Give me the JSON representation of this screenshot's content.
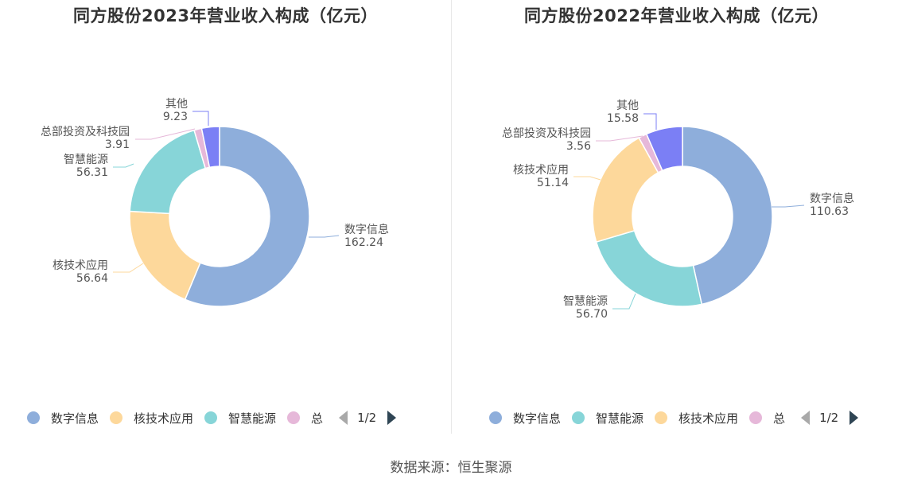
{
  "source_label": "数据来源：恒生聚源",
  "chart_data": [
    {
      "type": "pie",
      "title": "同方股份2023年营业收入构成（亿元）",
      "slices": [
        {
          "name": "数字信息",
          "value": 162.24,
          "color": "#8eaedb"
        },
        {
          "name": "核技术应用",
          "value": 56.64,
          "color": "#fdd89b"
        },
        {
          "name": "智慧能源",
          "value": 56.31,
          "color": "#87d5d8"
        },
        {
          "name": "总部投资及科技园",
          "value": 3.91,
          "color": "#e6b8d9"
        },
        {
          "name": "其他",
          "value": 9.23,
          "color": "#7b7ff5"
        }
      ],
      "legend": {
        "items": [
          {
            "name": "数字信息",
            "color": "#8eaedb"
          },
          {
            "name": "核技术应用",
            "color": "#fdd89b"
          },
          {
            "name": "智慧能源",
            "color": "#87d5d8"
          },
          {
            "name": "总",
            "color": "#e6b8d9"
          }
        ],
        "page": "1/2",
        "placement": "bottom"
      },
      "labels": [
        {
          "name": "数字信息",
          "value": "162.24"
        },
        {
          "name": "核技术应用",
          "value": "56.64"
        },
        {
          "name": "智慧能源",
          "value": "56.31"
        },
        {
          "name": "总部投资及科技园",
          "value": "3.91"
        },
        {
          "name": "其他",
          "value": "9.23"
        }
      ]
    },
    {
      "type": "pie",
      "title": "同方股份2022年营业收入构成（亿元）",
      "slices": [
        {
          "name": "数字信息",
          "value": 110.63,
          "color": "#8eaedb"
        },
        {
          "name": "智慧能源",
          "value": 56.7,
          "color": "#87d5d8"
        },
        {
          "name": "核技术应用",
          "value": 51.14,
          "color": "#fdd89b"
        },
        {
          "name": "总部投资及科技园",
          "value": 3.56,
          "color": "#e6b8d9"
        },
        {
          "name": "其他",
          "value": 15.58,
          "color": "#7b7ff5"
        }
      ],
      "legend": {
        "items": [
          {
            "name": "数字信息",
            "color": "#8eaedb"
          },
          {
            "name": "智慧能源",
            "color": "#87d5d8"
          },
          {
            "name": "核技术应用",
            "color": "#fdd89b"
          },
          {
            "name": "总",
            "color": "#e6b8d9"
          }
        ],
        "page": "1/2",
        "placement": "bottom"
      },
      "labels": [
        {
          "name": "数字信息",
          "value": "110.63"
        },
        {
          "name": "智慧能源",
          "value": "56.70"
        },
        {
          "name": "核技术应用",
          "value": "51.14"
        },
        {
          "name": "总部投资及科技园",
          "value": "3.56"
        },
        {
          "name": "其他",
          "value": "15.58"
        }
      ]
    }
  ]
}
